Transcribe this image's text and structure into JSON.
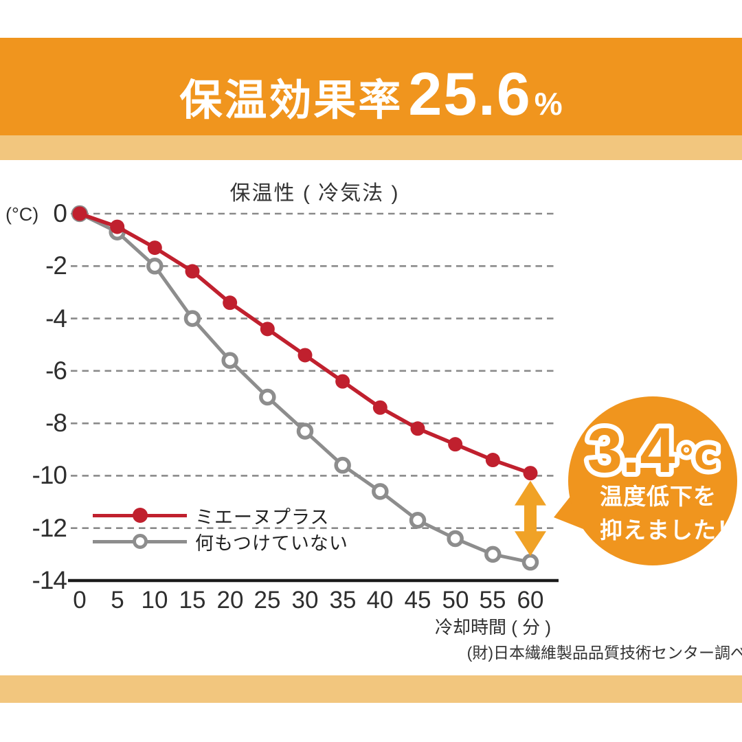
{
  "header": {
    "title_text": "保温効果率",
    "title_value": "25.6",
    "title_unit": "%"
  },
  "chart": {
    "title": "保温性 ( 冷気法 )",
    "y_unit_label": "(°C)",
    "x_axis_label": "冷却時間 ( 分 )",
    "y_ticks": [
      "0",
      "-2",
      "-4",
      "-6",
      "-8",
      "-10",
      "-12",
      "-14"
    ],
    "x_ticks": [
      "0",
      "5",
      "10",
      "15",
      "20",
      "25",
      "30",
      "35",
      "40",
      "45",
      "50",
      "55",
      "60"
    ]
  },
  "legend": {
    "items": [
      {
        "label": "ミエーヌプラス",
        "marker": "filled-red-circle"
      },
      {
        "label": "何もつけていない",
        "marker": "open-gray-circle"
      }
    ]
  },
  "badge": {
    "value": "3.4",
    "unit": "℃",
    "line1": "温度低下を",
    "line2": "抑えました！"
  },
  "caption": "(財)日本繊維製品品質技術センター調べ",
  "colors": {
    "band_orange": "#F0951E",
    "band_light_orange": "#F2C67E",
    "series_red": "#C0202E",
    "series_gray": "#8D8D8D",
    "arrow_orange": "#F0A226",
    "gridline_gray": "#8A8A8A",
    "axis_black": "#1B1B1B"
  },
  "chart_data": {
    "type": "line",
    "title": "保温性 ( 冷気法 )",
    "xlabel": "冷却時間 ( 分 )",
    "ylabel": "(°C)",
    "x": [
      0,
      5,
      10,
      15,
      20,
      25,
      30,
      35,
      40,
      45,
      50,
      55,
      60
    ],
    "xlim": [
      0,
      60
    ],
    "ylim": [
      -14,
      0
    ],
    "y_gridlines": [
      0,
      -2,
      -4,
      -6,
      -8,
      -10,
      -12
    ],
    "y_axis_baseline": -14,
    "grid": "horizontal-dashed",
    "legend_position": "inside-bottom-left",
    "series": [
      {
        "name": "ミエーヌプラス",
        "color": "#C0202E",
        "marker": "filled-circle",
        "values": [
          0,
          -0.5,
          -1.3,
          -2.2,
          -3.4,
          -4.4,
          -5.4,
          -6.4,
          -7.4,
          -8.2,
          -8.8,
          -9.4,
          -9.9
        ]
      },
      {
        "name": "何もつけていない",
        "color": "#8D8D8D",
        "marker": "open-circle",
        "values": [
          0,
          -0.7,
          -2.0,
          -4.0,
          -5.6,
          -7.0,
          -8.3,
          -9.6,
          -10.6,
          -11.7,
          -12.4,
          -13.0,
          -13.3
        ]
      }
    ],
    "annotation": {
      "value": "3.4",
      "unit": "℃",
      "text": [
        "温度低下を",
        "抑えました！"
      ],
      "at_x": 60,
      "meaning": "difference between series at x=60"
    }
  }
}
